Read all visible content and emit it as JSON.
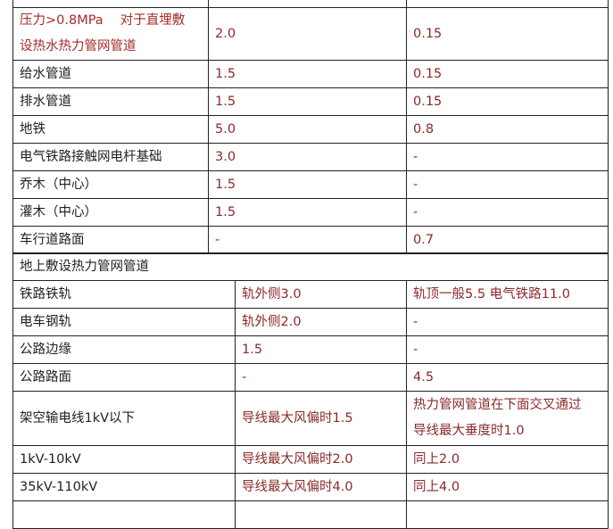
{
  "section_buried": {
    "rows": [
      {
        "item": "",
        "horizontal": "",
        "vertical": ""
      },
      {
        "item": "压力>0.8MPa　 对于直埋敷设热水热力管网管道",
        "horizontal": "2.0",
        "vertical": "0.15"
      },
      {
        "item": "给水管道",
        "horizontal": "1.5",
        "vertical": "0.15"
      },
      {
        "item": "排水管道",
        "horizontal": "1.5",
        "vertical": "0.15"
      },
      {
        "item": "地铁",
        "horizontal": "5.0",
        "vertical": "0.8"
      },
      {
        "item": "电气铁路接触网电杆基础",
        "horizontal": "3.0",
        "vertical": "-"
      },
      {
        "item": "乔木（中心）",
        "horizontal": "1.5",
        "vertical": "-"
      },
      {
        "item": "灌木（中心）",
        "horizontal": "1.5",
        "vertical": "-"
      },
      {
        "item": "车行道路面",
        "horizontal": "-",
        "vertical": "0.7"
      }
    ]
  },
  "section_above_ground": {
    "title": "地上敷设热力管网管道",
    "rows": [
      {
        "item": "铁路铁轨",
        "horizontal": "轨外侧3.0",
        "vertical": "轨顶一般5.5 电气铁路11.0"
      },
      {
        "item": "电车钢轨",
        "horizontal": "轨外侧2.0",
        "vertical": "-"
      },
      {
        "item": "公路边缘",
        "horizontal": "1.5",
        "vertical": "-"
      },
      {
        "item": "公路路面",
        "horizontal": "-",
        "vertical": "4.5"
      },
      {
        "item": "架空输电线1kV以下",
        "horizontal": "导线最大风偏时1.5",
        "vertical": "热力管网管道在下面交叉通过导线最大垂度时1.0"
      },
      {
        "item": "1kV-10kV",
        "horizontal": "导线最大风偏时2.0",
        "vertical": "同上2.0"
      },
      {
        "item": "35kV-110kV",
        "horizontal": "导线最大风偏时4.0",
        "vertical": "同上4.0"
      },
      {
        "item": "",
        "horizontal": "",
        "vertical": ""
      }
    ]
  }
}
